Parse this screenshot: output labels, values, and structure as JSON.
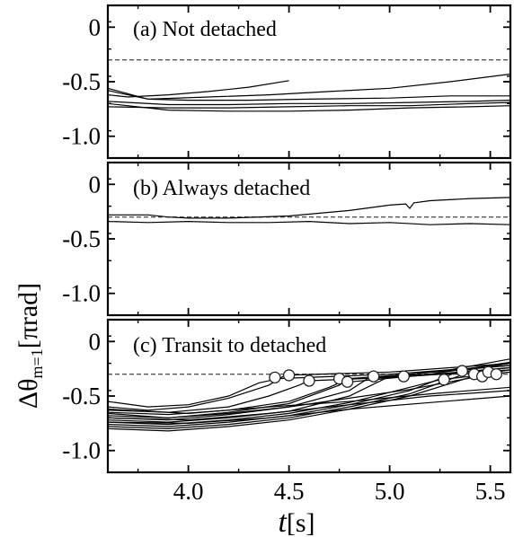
{
  "figure": {
    "ylabel_base": "Δθ",
    "ylabel_sub": "m=1",
    "ylabel_rest": "[πrad]",
    "xlabel_var": "t",
    "xlabel_rest": "[s]"
  },
  "chart_data": [
    {
      "type": "line",
      "label": "(a) Not detached",
      "xlim": [
        3.6,
        5.6
      ],
      "ylim": [
        -1.2,
        0.2
      ],
      "yticks": [
        0,
        -0.5,
        -1.0
      ],
      "ytick_labels": [
        "0",
        "-0.5",
        "-1.0"
      ],
      "xticks": [
        4.0,
        4.5,
        5.0,
        5.5
      ],
      "reference_line": -0.3,
      "series": [
        {
          "x": [
            3.6,
            3.7,
            3.9,
            4.1,
            4.3,
            4.5
          ],
          "y": [
            -0.62,
            -0.64,
            -0.62,
            -0.59,
            -0.55,
            -0.49
          ]
        },
        {
          "x": [
            3.6,
            3.8,
            4.1,
            4.4,
            4.7,
            5.0,
            5.3,
            5.6
          ],
          "y": [
            -0.58,
            -0.66,
            -0.64,
            -0.62,
            -0.59,
            -0.56,
            -0.5,
            -0.43
          ]
        },
        {
          "x": [
            3.6,
            3.8,
            4.0,
            4.3,
            4.6,
            5.0,
            5.3,
            5.6
          ],
          "y": [
            -0.56,
            -0.66,
            -0.67,
            -0.67,
            -0.66,
            -0.65,
            -0.63,
            -0.63
          ]
        },
        {
          "x": [
            3.6,
            3.9,
            4.2,
            4.5,
            4.8,
            5.1,
            5.4,
            5.6
          ],
          "y": [
            -0.68,
            -0.71,
            -0.71,
            -0.7,
            -0.7,
            -0.69,
            -0.68,
            -0.67
          ]
        },
        {
          "x": [
            3.6,
            3.9,
            4.2,
            4.5,
            4.8,
            5.1,
            5.4,
            5.6
          ],
          "y": [
            -0.73,
            -0.74,
            -0.74,
            -0.73,
            -0.72,
            -0.72,
            -0.7,
            -0.69
          ]
        },
        {
          "x": [
            3.6,
            3.9,
            4.2,
            4.5,
            4.8,
            5.1,
            5.4,
            5.6
          ],
          "y": [
            -0.7,
            -0.76,
            -0.77,
            -0.77,
            -0.76,
            -0.74,
            -0.73,
            -0.72
          ]
        }
      ]
    },
    {
      "type": "line",
      "label": "(b) Always detached",
      "xlim": [
        3.6,
        5.6
      ],
      "ylim": [
        -1.2,
        0.2
      ],
      "yticks": [
        0,
        -0.5,
        -1.0
      ],
      "ytick_labels": [
        "0",
        "-0.5",
        "-1.0"
      ],
      "xticks": [
        4.0,
        4.5,
        5.0,
        5.5
      ],
      "reference_line": -0.3,
      "series": [
        {
          "x": [
            3.6,
            3.8,
            3.9,
            4.0,
            4.2,
            4.5,
            4.8,
            5.0,
            5.08,
            5.1,
            5.12,
            5.2,
            5.4,
            5.6
          ],
          "y": [
            -0.28,
            -0.28,
            -0.3,
            -0.31,
            -0.31,
            -0.29,
            -0.24,
            -0.19,
            -0.18,
            -0.22,
            -0.17,
            -0.15,
            -0.13,
            -0.12
          ]
        },
        {
          "x": [
            3.6,
            3.8,
            4.0,
            4.2,
            4.4,
            4.6,
            4.8,
            5.0,
            5.2,
            5.4,
            5.6
          ],
          "y": [
            -0.34,
            -0.35,
            -0.34,
            -0.35,
            -0.35,
            -0.34,
            -0.36,
            -0.35,
            -0.37,
            -0.36,
            -0.37
          ]
        }
      ]
    },
    {
      "type": "line",
      "label": "(c) Transit to detached",
      "xlim": [
        3.6,
        5.6
      ],
      "ylim": [
        -1.2,
        0.2
      ],
      "yticks": [
        0,
        -0.5,
        -1.0
      ],
      "ytick_labels": [
        "0",
        "-0.5",
        "-1.0"
      ],
      "xticks": [
        4.0,
        4.5,
        5.0,
        5.5
      ],
      "xtick_labels": [
        "4.0",
        "4.5",
        "5.0",
        "5.5"
      ],
      "reference_line": -0.3,
      "series": [
        {
          "x": [
            3.6,
            3.8,
            4.0,
            4.2,
            4.35,
            4.45,
            5.0,
            5.6
          ],
          "y": [
            -0.55,
            -0.6,
            -0.58,
            -0.5,
            -0.38,
            -0.34,
            -0.3,
            -0.22
          ]
        },
        {
          "x": [
            3.6,
            3.8,
            4.0,
            4.2,
            4.4,
            4.48,
            5.0,
            5.6
          ],
          "y": [
            -0.6,
            -0.63,
            -0.6,
            -0.52,
            -0.4,
            -0.31,
            -0.28,
            -0.2
          ]
        },
        {
          "x": [
            3.6,
            3.9,
            4.2,
            4.4,
            4.55,
            4.6,
            5.0,
            5.6
          ],
          "y": [
            -0.63,
            -0.65,
            -0.6,
            -0.5,
            -0.4,
            -0.36,
            -0.33,
            -0.26
          ]
        },
        {
          "x": [
            3.6,
            3.9,
            4.2,
            4.5,
            4.7,
            4.75,
            5.1,
            5.6
          ],
          "y": [
            -0.65,
            -0.67,
            -0.63,
            -0.55,
            -0.42,
            -0.38,
            -0.32,
            -0.24
          ]
        },
        {
          "x": [
            3.6,
            3.9,
            4.2,
            4.5,
            4.75,
            4.8,
            5.1,
            5.6
          ],
          "y": [
            -0.68,
            -0.7,
            -0.65,
            -0.57,
            -0.4,
            -0.34,
            -0.3,
            -0.22
          ]
        },
        {
          "x": [
            3.6,
            3.9,
            4.2,
            4.5,
            4.8,
            4.9,
            5.2,
            5.6
          ],
          "y": [
            -0.7,
            -0.72,
            -0.67,
            -0.6,
            -0.45,
            -0.33,
            -0.3,
            -0.19
          ]
        },
        {
          "x": [
            3.6,
            3.9,
            4.2,
            4.5,
            4.8,
            5.0,
            5.3,
            5.6
          ],
          "y": [
            -0.72,
            -0.74,
            -0.7,
            -0.64,
            -0.5,
            -0.32,
            -0.26,
            -0.16
          ]
        },
        {
          "x": [
            3.6,
            3.9,
            4.2,
            4.5,
            4.8,
            5.1,
            5.25,
            5.6
          ],
          "y": [
            -0.74,
            -0.76,
            -0.72,
            -0.66,
            -0.56,
            -0.42,
            -0.35,
            -0.28
          ]
        },
        {
          "x": [
            3.6,
            3.9,
            4.2,
            4.5,
            4.8,
            5.1,
            5.35,
            5.6
          ],
          "y": [
            -0.76,
            -0.78,
            -0.74,
            -0.68,
            -0.58,
            -0.45,
            -0.27,
            -0.2
          ]
        },
        {
          "x": [
            3.6,
            3.9,
            4.2,
            4.5,
            4.8,
            5.1,
            5.4,
            5.6
          ],
          "y": [
            -0.78,
            -0.8,
            -0.76,
            -0.7,
            -0.6,
            -0.48,
            -0.28,
            -0.24
          ]
        },
        {
          "x": [
            3.6,
            3.9,
            4.2,
            4.5,
            4.8,
            5.1,
            5.45,
            5.6
          ],
          "y": [
            -0.8,
            -0.82,
            -0.78,
            -0.72,
            -0.62,
            -0.5,
            -0.3,
            -0.26
          ]
        },
        {
          "x": [
            3.6,
            3.9,
            4.2,
            4.5,
            4.8,
            5.1,
            5.5,
            5.6
          ],
          "y": [
            -0.66,
            -0.7,
            -0.66,
            -0.6,
            -0.52,
            -0.44,
            -0.3,
            -0.28
          ]
        },
        {
          "x": [
            3.6,
            4.0,
            4.4,
            4.8,
            5.2,
            5.6
          ],
          "y": [
            -0.7,
            -0.72,
            -0.66,
            -0.58,
            -0.5,
            -0.45
          ]
        },
        {
          "x": [
            3.6,
            4.0,
            4.4,
            4.8,
            5.2,
            5.6
          ],
          "y": [
            -0.74,
            -0.75,
            -0.7,
            -0.62,
            -0.56,
            -0.5
          ]
        },
        {
          "x": [
            3.6,
            4.0,
            4.4,
            4.8,
            5.2,
            5.6
          ],
          "y": [
            -0.62,
            -0.66,
            -0.6,
            -0.55,
            -0.48,
            -0.42
          ]
        }
      ],
      "transition_points": {
        "x": [
          4.43,
          4.5,
          4.6,
          4.75,
          4.79,
          4.92,
          5.07,
          5.27,
          5.36,
          5.42,
          5.46,
          5.49,
          5.53
        ],
        "y": [
          -0.33,
          -0.31,
          -0.36,
          -0.34,
          -0.37,
          -0.32,
          -0.32,
          -0.35,
          -0.27,
          -0.3,
          -0.32,
          -0.28,
          -0.3
        ]
      }
    }
  ]
}
